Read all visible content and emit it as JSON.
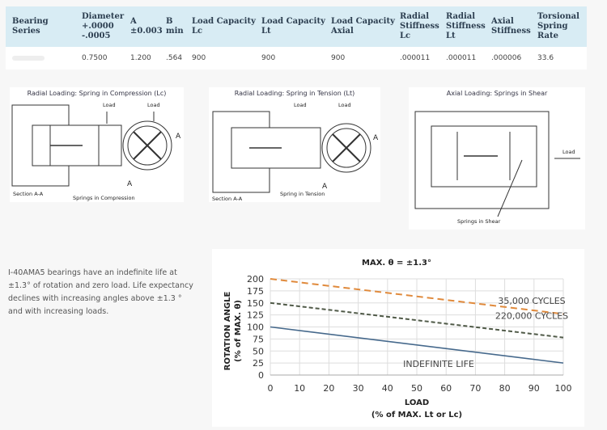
{
  "table": {
    "headers": [
      "Bearing Series",
      "Diameter +.0000 -.0005",
      "A ±0.003",
      "B min",
      "Load Capacity Lc",
      "Load Capacity Lt",
      "Load Capacity Axial",
      "Radial Stiffness Lc",
      "Radial Stiffness Lt",
      "Axial Stiffness",
      "Torsional Spring Rate"
    ],
    "rows": [
      [
        "",
        "0.7500",
        "1.200",
        ".564",
        "900",
        "900",
        "900",
        ".000011",
        ".000011",
        ".000006",
        "33.6"
      ]
    ],
    "header_bg": "#d8ecf4"
  },
  "diagrams": [
    {
      "title": "Radial Loading: Spring in Compression (Lc)",
      "labels": [
        "Load",
        "Load",
        "A",
        "A",
        "Section A-A",
        "Springs in Compression"
      ]
    },
    {
      "title": "Radial Loading: Spring in Tension (Lt)",
      "labels": [
        "Load",
        "Load",
        "A",
        "A",
        "Section A-A",
        "Spring in Tension"
      ]
    },
    {
      "title": "Axial Loading: Springs in Shear",
      "labels": [
        "Load",
        "Springs in Shear"
      ]
    }
  ],
  "description": "I-40AMA5  bearings have an indefinite life at ±1.3° of rotation and zero load.  Life expectancy declines with increasing angles above ±1.3 ° and with increasing loads.",
  "chart_data": {
    "type": "line",
    "title": "MAX. θ = ±1.3°",
    "xlabel": "LOAD",
    "xlabel2": "(% of MAX. Lt or Lc)",
    "ylabel": "ROTATION ANGLE",
    "ylabel2": "(% of MAX. θ)",
    "xlim": [
      0,
      100
    ],
    "ylim": [
      0,
      200
    ],
    "xticks": [
      0,
      10,
      20,
      30,
      40,
      50,
      60,
      70,
      80,
      90,
      100
    ],
    "yticks": [
      0,
      25,
      50,
      75,
      100,
      125,
      150,
      175,
      200
    ],
    "grid": true,
    "x": [
      0,
      100
    ],
    "series": [
      {
        "name": "35,000 CYCLES",
        "values": [
          200,
          127
        ],
        "color": "#e08a3c",
        "style": "dashed"
      },
      {
        "name": "220,000 CYCLES",
        "values": [
          150,
          78
        ],
        "color": "#505a48",
        "style": "dashed"
      },
      {
        "name": "INDEFINITE LIFE",
        "values": [
          100,
          25
        ],
        "color": "#46698c",
        "style": "solid"
      }
    ]
  }
}
